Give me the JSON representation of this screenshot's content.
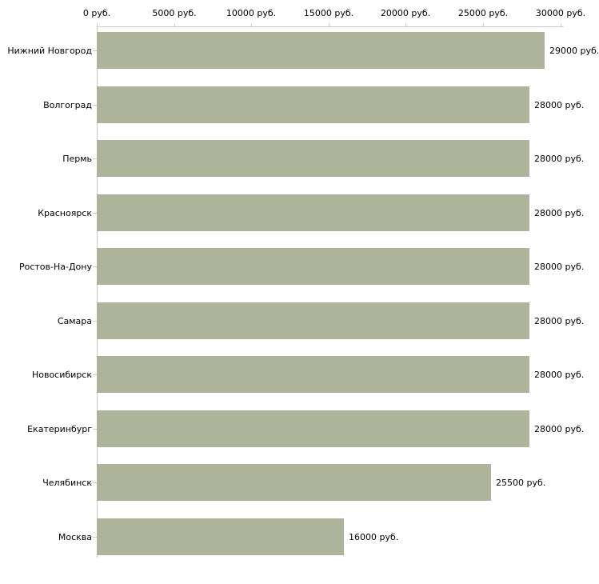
{
  "chart_data": {
    "type": "bar",
    "orientation": "horizontal",
    "title": "",
    "xlabel": "",
    "ylabel": "",
    "legend": false,
    "grid": false,
    "categories": [
      "Нижний Новгород",
      "Волгоград",
      "Пермь",
      "Красноярск",
      "Ростов-На-Дону",
      "Самара",
      "Новосибирск",
      "Екатеринбург",
      "Челябинск",
      "Москва"
    ],
    "values": [
      29000,
      28000,
      28000,
      28000,
      28000,
      28000,
      28000,
      28000,
      25500,
      16000
    ],
    "value_labels": [
      "29000 руб.",
      "28000 руб.",
      "28000 руб.",
      "28000 руб.",
      "28000 руб.",
      "28000 руб.",
      "28000 руб.",
      "28000 руб.",
      "25500 руб.",
      "16000 руб."
    ],
    "x_axis": {
      "position": "top",
      "min": 0,
      "max": 30000,
      "ticks": [
        0,
        5000,
        10000,
        15000,
        20000,
        25000,
        30000
      ],
      "tick_labels": [
        "0 руб.",
        "5000 руб.",
        "10000 руб.",
        "15000 руб.",
        "20000 руб.",
        "25000 руб.",
        "30000 руб."
      ]
    },
    "colors": {
      "bar": "#adb49a",
      "axis_line": "#c9c9c9",
      "tick_mark": "#ccd1b3",
      "text": "#000000",
      "background": "#ffffff"
    }
  }
}
